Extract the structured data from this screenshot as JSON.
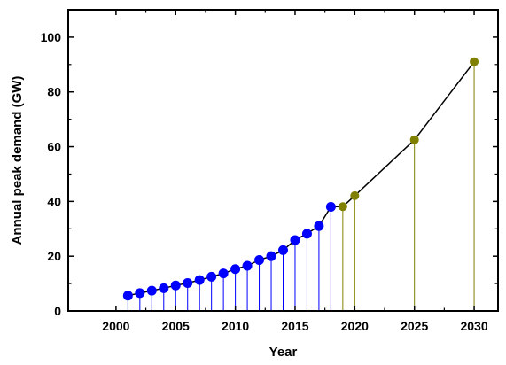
{
  "chart_data": {
    "type": "scatter",
    "title": "",
    "xlabel": "Year",
    "ylabel": "Annual peak demand (GW)",
    "xlim": [
      1996,
      2032
    ],
    "ylim": [
      0,
      110
    ],
    "xticks": [
      2000,
      2005,
      2010,
      2015,
      2020,
      2025,
      2030
    ],
    "yticks": [
      0,
      20,
      40,
      60,
      80,
      100
    ],
    "grid": false,
    "legend": "none",
    "series": [
      {
        "kind": "historical",
        "color": "#0000ff",
        "line_color": "#000000",
        "stem_color": "#0000ff",
        "x": [
          2001,
          2002,
          2003,
          2004,
          2005,
          2006,
          2007,
          2008,
          2009,
          2010,
          2011,
          2012,
          2013,
          2014,
          2015,
          2016,
          2017,
          2018
        ],
        "y": [
          5.6,
          6.5,
          7.4,
          8.3,
          9.3,
          10.2,
          11.3,
          12.5,
          13.7,
          15.3,
          16.5,
          18.6,
          20.0,
          22.2,
          25.9,
          28.2,
          31.0,
          38.0
        ]
      },
      {
        "kind": "projected",
        "color": "#808000",
        "line_color": "#000000",
        "stem_color": "#808000",
        "x": [
          2019,
          2020,
          2025,
          2030
        ],
        "y": [
          38.1,
          42.1,
          62.5,
          91.0
        ]
      }
    ]
  }
}
